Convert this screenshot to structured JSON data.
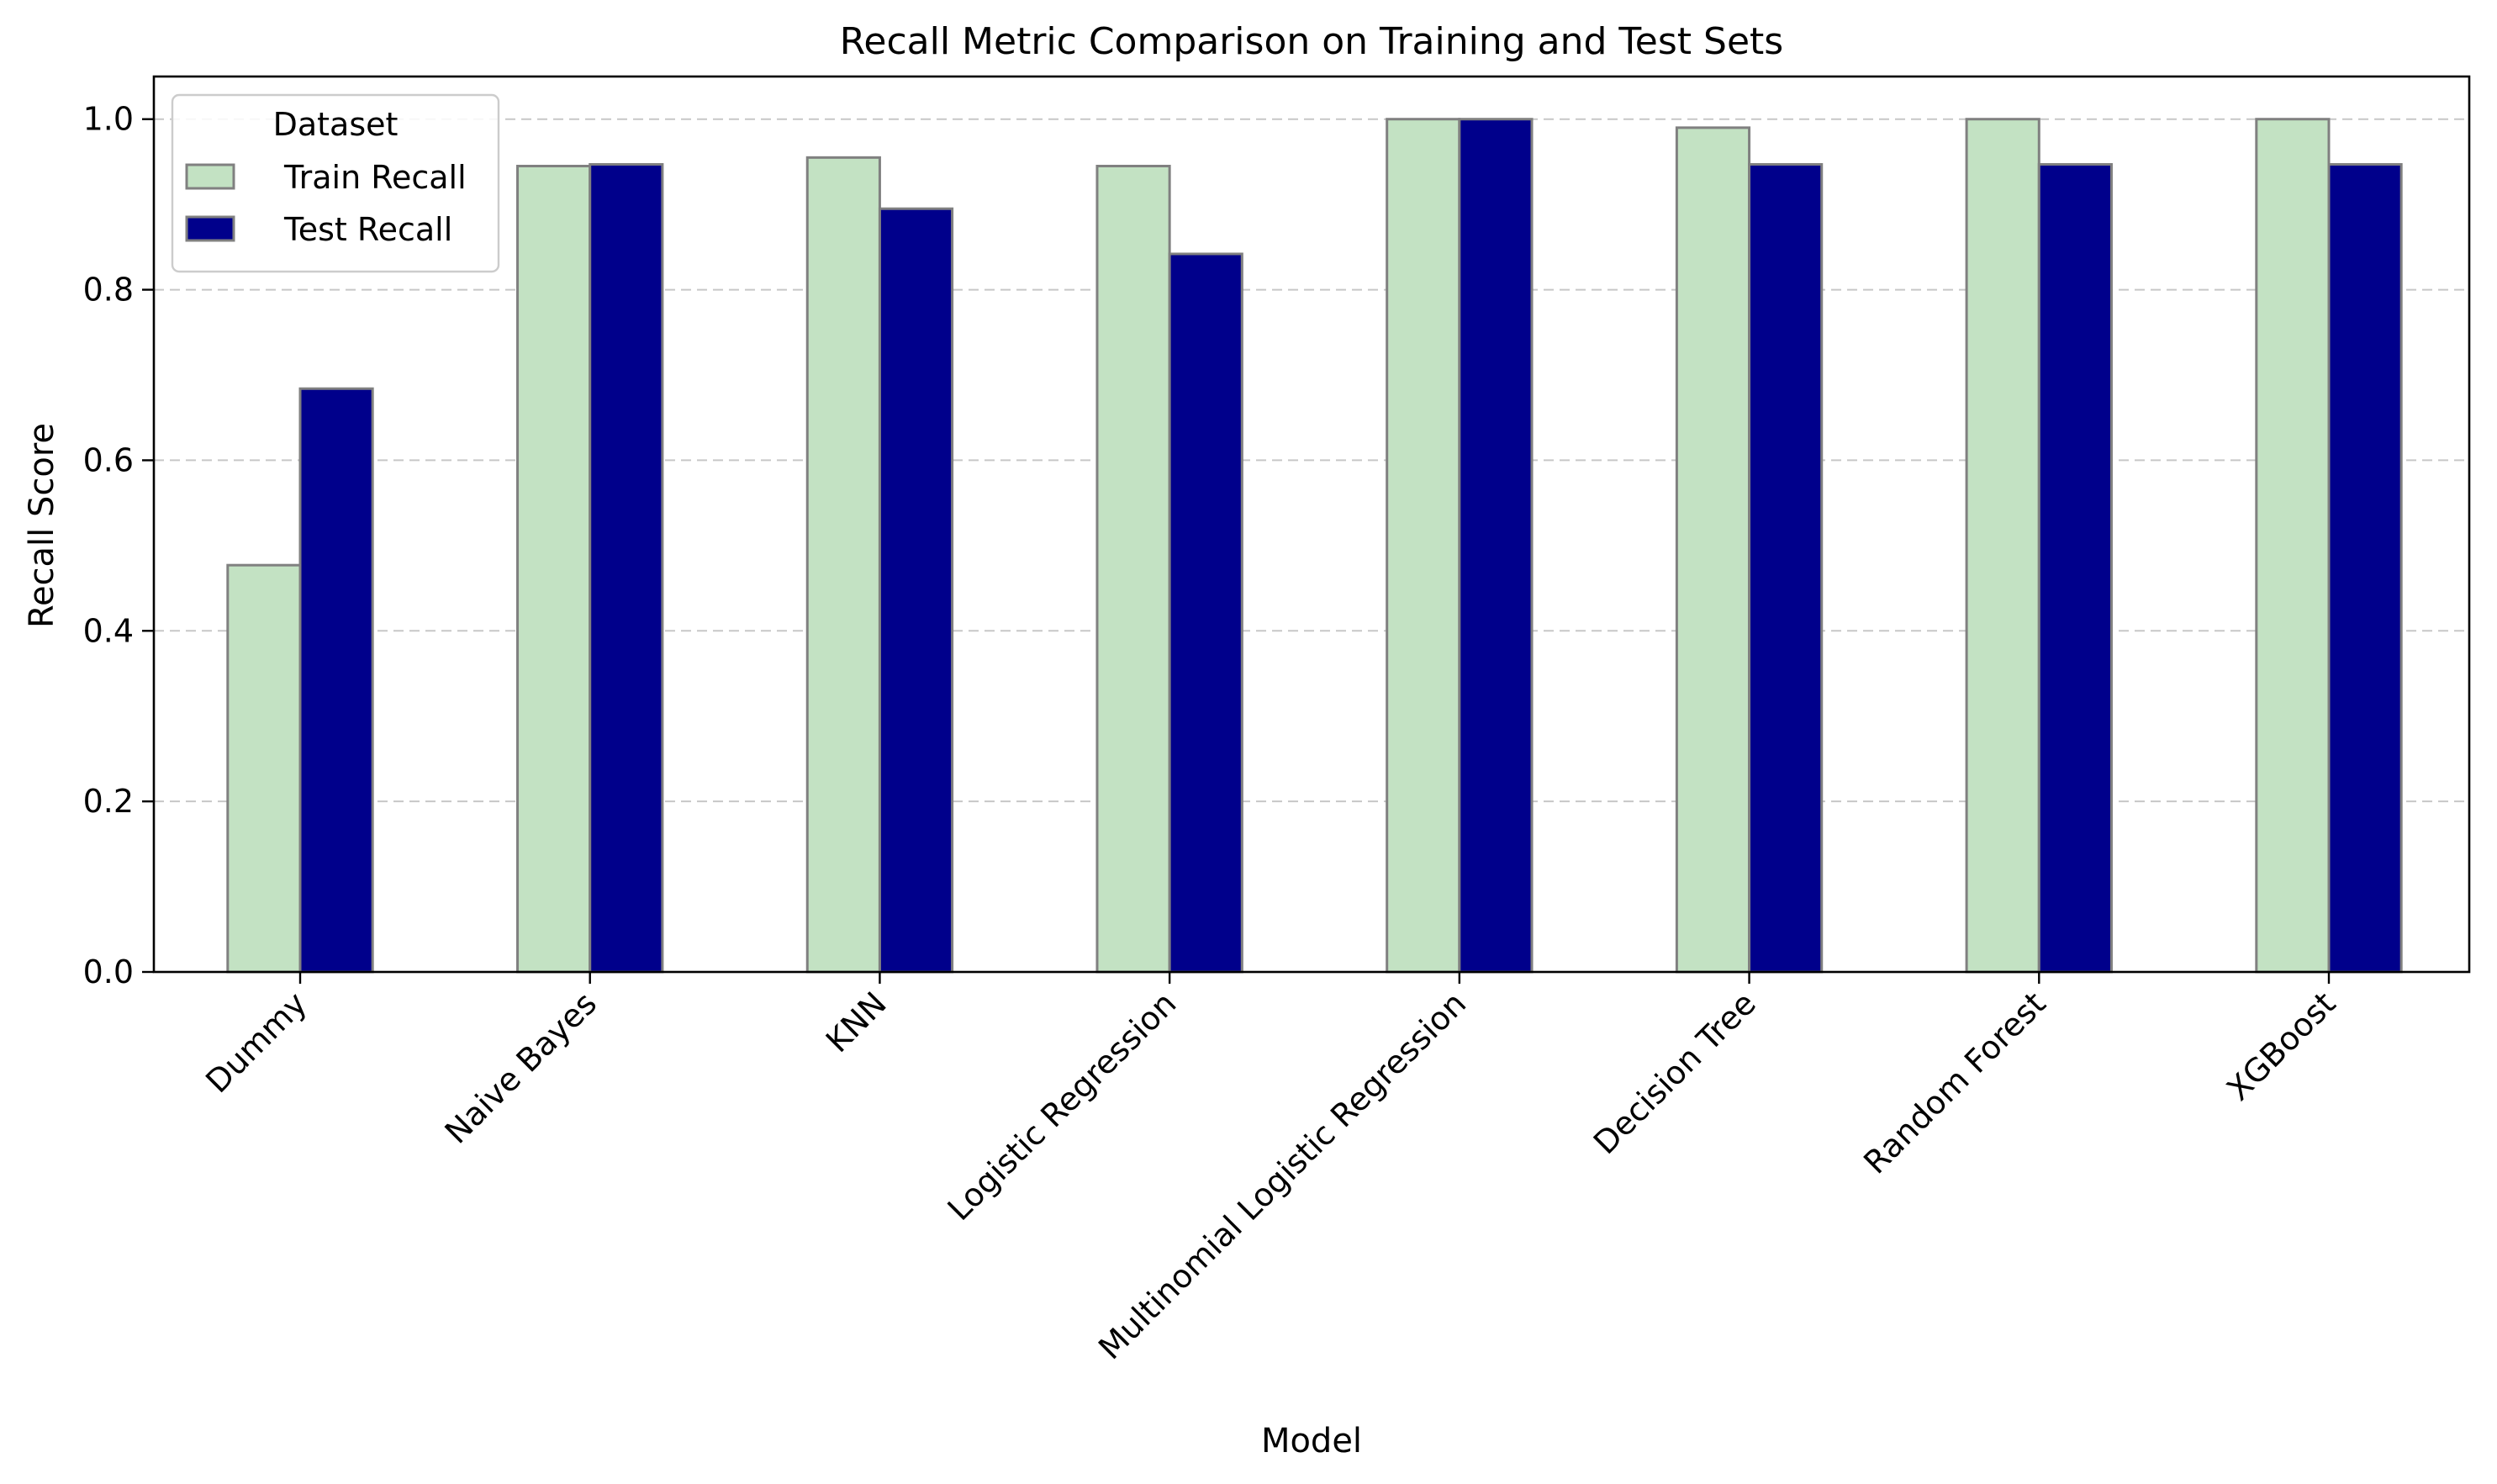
{
  "chart_data": {
    "type": "bar",
    "title": "Recall Metric Comparison on Training and Test Sets",
    "xlabel": "Model",
    "ylabel": "Recall Score",
    "categories": [
      "Dummy",
      "Naive Bayes",
      "KNN",
      "Logistic Regression",
      "Multinomial Logistic Regression",
      "Decision Tree",
      "Random Forest",
      "XGBoost"
    ],
    "series": [
      {
        "name": "Train Recall",
        "color": "#c3e2c3",
        "values": [
          0.477,
          0.945,
          0.955,
          0.945,
          1.0,
          0.99,
          1.0,
          1.0
        ]
      },
      {
        "name": "Test Recall",
        "color": "#00008b",
        "values": [
          0.684,
          0.947,
          0.895,
          0.842,
          1.0,
          0.947,
          0.947,
          0.947
        ]
      }
    ],
    "ylim": [
      0,
      1.05
    ],
    "yticks": [
      "0.0",
      "0.2",
      "0.4",
      "0.6",
      "0.8",
      "1.0"
    ],
    "grid": "y, dashed",
    "legend": {
      "title": "Dataset",
      "position": "top-left"
    },
    "edge_color": "#808080"
  }
}
